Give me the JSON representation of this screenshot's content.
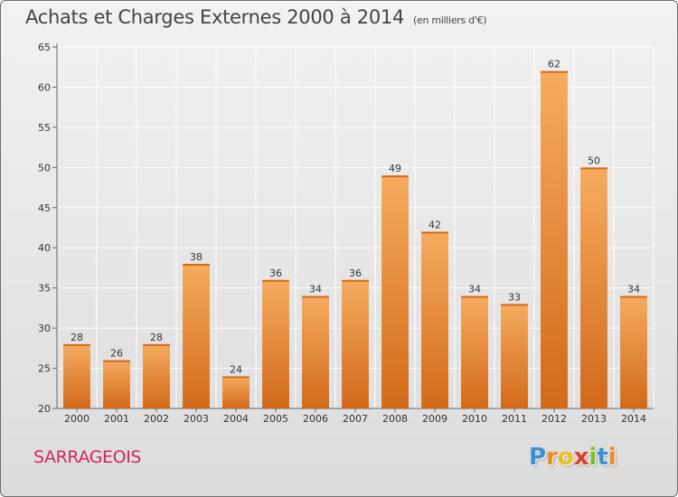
{
  "header": {
    "title": "Achats et Charges Externes 2000 à 2014",
    "unit": "(en milliers d'€)"
  },
  "footer": {
    "town": "SARRAGEOIS",
    "brand_letters": [
      "P",
      "r",
      "o",
      "x",
      "i",
      "t",
      "i"
    ],
    "brand_colors": [
      "#3a8fd6",
      "#f28a1e",
      "#e8c21c",
      "#e23a2a",
      "#7bbf2a",
      "#3a8fd6",
      "#f28a1e"
    ]
  },
  "chart_data": {
    "type": "bar",
    "title": "Achats et Charges Externes 2000 à 2014",
    "subtitle": "(en milliers d'€)",
    "xlabel": "",
    "ylabel": "",
    "categories": [
      "2000",
      "2001",
      "2002",
      "2003",
      "2004",
      "2005",
      "2006",
      "2007",
      "2008",
      "2009",
      "2010",
      "2011",
      "2012",
      "2013",
      "2014"
    ],
    "values": [
      28,
      26,
      28,
      38,
      24,
      36,
      34,
      36,
      49,
      42,
      34,
      33,
      62,
      50,
      34
    ],
    "ylim": [
      20,
      65
    ],
    "yticks": [
      20,
      25,
      30,
      35,
      40,
      45,
      50,
      55,
      60,
      65
    ],
    "grid": true,
    "bar_color": "#f08a2c",
    "bar_color_light": "#f6ac60",
    "bar_color_dark": "#d2691a",
    "grid_color": "#ffffff"
  }
}
